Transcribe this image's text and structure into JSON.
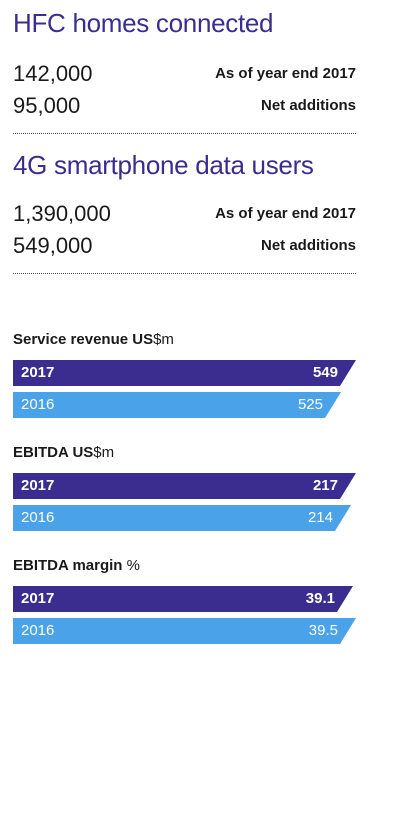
{
  "stats": [
    {
      "title": "HFC homes connected",
      "rows": [
        {
          "value": "142,000",
          "label": "As of year end 2017"
        },
        {
          "value": "95,000",
          "label": "Net additions"
        }
      ]
    },
    {
      "title": "4G smartphone data users",
      "rows": [
        {
          "value": "1,390,000",
          "label": "As of year end 2017"
        },
        {
          "value": "549,000",
          "label": "Net additions"
        }
      ]
    }
  ],
  "chart_data": [
    {
      "type": "bar",
      "title_bold": "Service revenue US",
      "title_unit": "$m",
      "categories": [
        "2017",
        "2016"
      ],
      "values": [
        549,
        525
      ],
      "value_labels": [
        "549",
        "525"
      ],
      "colors": [
        "#3b2d8f",
        "#4aa3e8"
      ]
    },
    {
      "type": "bar",
      "title_bold": "EBITDA US",
      "title_unit": "$m",
      "categories": [
        "2017",
        "2016"
      ],
      "values": [
        217,
        214
      ],
      "value_labels": [
        "217",
        "214"
      ],
      "colors": [
        "#3b2d8f",
        "#4aa3e8"
      ]
    },
    {
      "type": "bar",
      "title_bold": "EBITDA margin",
      "title_unit": " %",
      "categories": [
        "2017",
        "2016"
      ],
      "values": [
        39.1,
        39.5
      ],
      "value_labels": [
        "39.1",
        "39.5"
      ],
      "colors": [
        "#3b2d8f",
        "#4aa3e8"
      ]
    }
  ]
}
